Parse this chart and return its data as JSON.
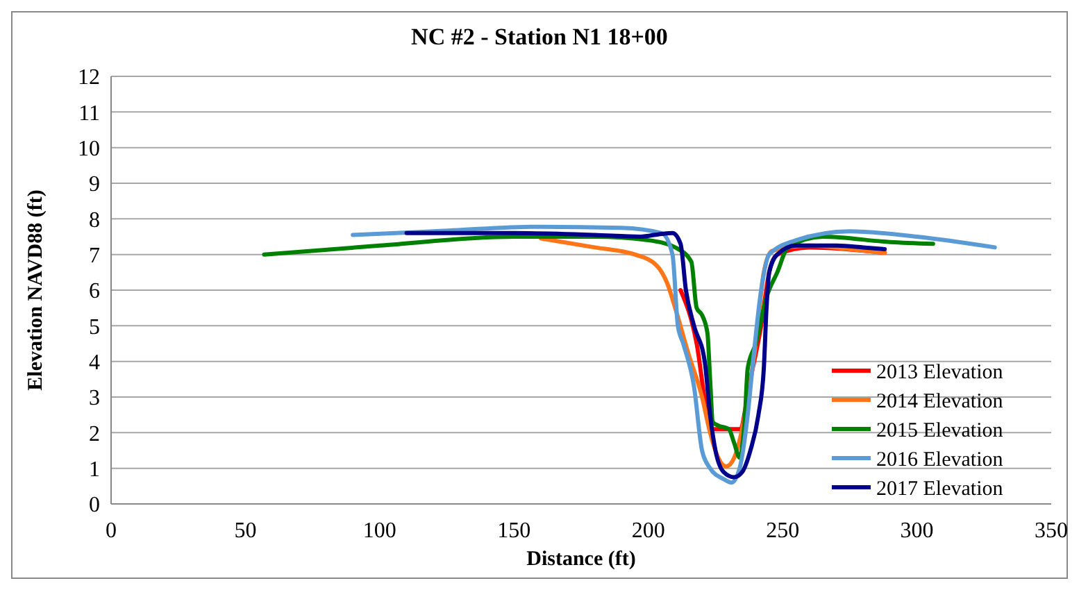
{
  "chart_data": {
    "type": "line",
    "title": "NC #2 - Station N1 18+00",
    "xlabel": "Distance (ft)",
    "ylabel": "Elevation NAVD88 (ft)",
    "xlim": [
      0,
      350
    ],
    "xticks": [
      0,
      50,
      100,
      150,
      200,
      250,
      300,
      350
    ],
    "ylim": [
      0,
      12
    ],
    "yticks": [
      0,
      1,
      2,
      3,
      4,
      5,
      6,
      7,
      8,
      9,
      10,
      11,
      12
    ],
    "grid": "y",
    "legend": "bottom right",
    "marker": "none",
    "line_style": "solid",
    "series": [
      {
        "name": "2013 Elevation",
        "color": "#ff0000",
        "x": [
          212,
          218,
          222,
          224,
          234,
          238,
          242,
          245,
          248,
          260,
          288
        ],
        "values": [
          6.0,
          4.5,
          2.5,
          2.1,
          2.1,
          3.5,
          5.0,
          6.5,
          7.0,
          7.2,
          7.05
        ]
      },
      {
        "name": "2014 Elevation",
        "color": "#ff7518",
        "x": [
          160,
          180,
          195,
          203,
          207,
          210,
          215,
          220,
          223,
          226,
          229,
          232,
          236,
          240,
          243,
          246,
          260,
          275,
          288
        ],
        "values": [
          7.45,
          7.2,
          7.0,
          6.7,
          6.2,
          5.5,
          4.2,
          3.0,
          2.0,
          1.3,
          1.05,
          1.3,
          2.5,
          4.5,
          6.5,
          7.1,
          7.25,
          7.15,
          7.05
        ]
      },
      {
        "name": "2015 Elevation",
        "color": "#008000",
        "x": [
          57,
          100,
          150,
          180,
          200,
          210,
          216,
          218,
          220,
          222,
          223,
          224,
          226,
          230,
          232,
          234,
          236,
          237,
          240,
          244,
          248,
          252,
          265,
          290,
          306
        ],
        "values": [
          7.0,
          7.25,
          7.5,
          7.5,
          7.4,
          7.2,
          6.8,
          5.5,
          5.3,
          4.8,
          3.5,
          2.3,
          2.2,
          2.1,
          1.7,
          1.3,
          2.5,
          3.8,
          4.5,
          5.8,
          6.5,
          7.2,
          7.5,
          7.35,
          7.3
        ]
      },
      {
        "name": "2016 Elevation",
        "color": "#5b9bd5",
        "x": [
          90,
          120,
          160,
          190,
          205,
          209,
          211,
          213,
          217,
          220,
          223,
          228,
          231,
          234,
          237,
          239,
          242,
          245,
          255,
          275,
          300,
          329
        ],
        "values": [
          7.55,
          7.65,
          7.78,
          7.75,
          7.6,
          7.0,
          5.0,
          4.5,
          3.3,
          1.5,
          1.0,
          0.7,
          0.6,
          1.0,
          2.5,
          4.0,
          6.0,
          7.0,
          7.4,
          7.65,
          7.5,
          7.2
        ]
      },
      {
        "name": "2017 Elevation",
        "color": "#00008b",
        "x": [
          110,
          150,
          180,
          197,
          205,
          209,
          212,
          214,
          217,
          221,
          223,
          225,
          228,
          232,
          235,
          238,
          241,
          243,
          244,
          245,
          248,
          255,
          270,
          280,
          288
        ],
        "values": [
          7.6,
          7.6,
          7.55,
          7.5,
          7.58,
          7.6,
          7.3,
          6.0,
          5.0,
          4.0,
          2.5,
          1.5,
          0.9,
          0.75,
          0.9,
          1.5,
          2.5,
          3.8,
          5.5,
          6.5,
          7.0,
          7.25,
          7.25,
          7.2,
          7.15
        ]
      }
    ]
  }
}
